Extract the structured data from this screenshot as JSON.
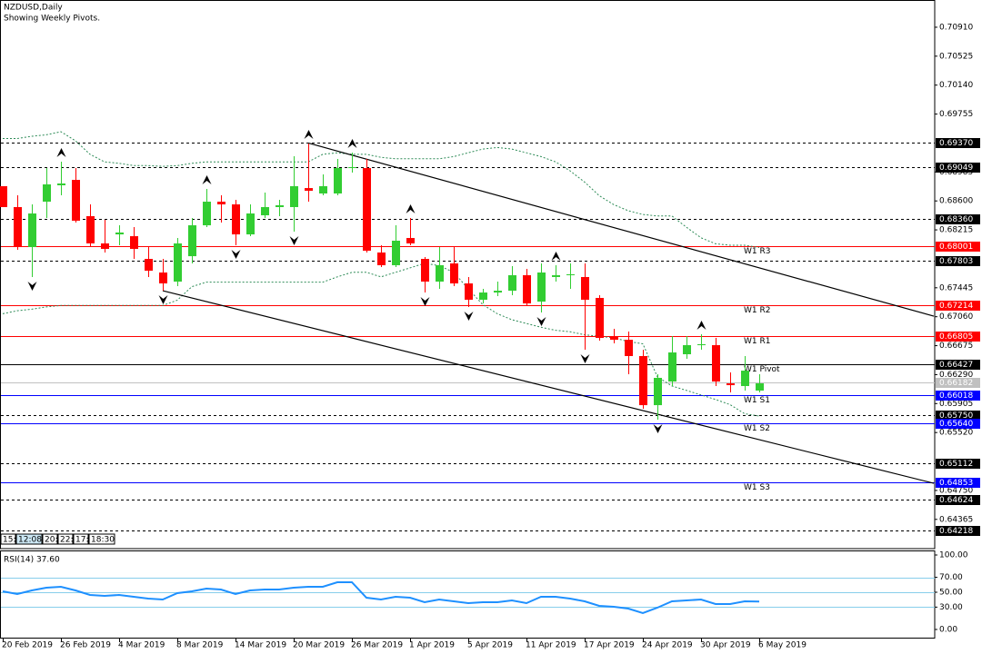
{
  "chart_data": [
    {
      "type": "candlestick",
      "title": "NZDUSD,Daily",
      "subtitle": "Showing Weekly Pivots.",
      "categories": [
        "20 Feb 2019",
        null,
        null,
        null,
        "26 Feb 2019",
        null,
        null,
        null,
        "4 Mar 2019",
        null,
        null,
        null,
        "8 Mar 2019",
        null,
        null,
        null,
        "14 Mar 2019",
        null,
        null,
        null,
        "20 Mar 2019",
        null,
        null,
        null,
        "26 Mar 2019",
        null,
        null,
        null,
        "1 Apr 2019",
        null,
        null,
        null,
        "5 Apr 2019",
        null,
        null,
        null,
        "11 Apr 2019",
        null,
        null,
        null,
        "17 Apr 2019",
        null,
        null,
        null,
        "24 Apr 2019",
        null,
        null,
        null,
        "30 Apr 2019",
        null,
        null,
        null,
        "6 May 2019"
      ],
      "open": [
        0.68796,
        0.68518,
        0.67986,
        0.6859,
        0.68808,
        0.6888,
        0.68397,
        0.68035,
        0.68155,
        0.68131,
        0.67829,
        0.67648,
        0.67527,
        0.67865,
        0.68276,
        0.6859,
        0.68554,
        0.68155,
        0.68409,
        0.68518,
        0.68518,
        0.68771,
        0.68699,
        0.68699,
        0.69037,
        0.69037,
        0.67914,
        0.67745,
        0.68107,
        0.67829,
        0.67527,
        0.67769,
        0.67503,
        0.67286,
        0.67382,
        0.67406,
        0.67612,
        0.67261,
        0.67588,
        0.67612,
        0.67588,
        0.6731,
        0.66802,
        0.66754,
        0.66537,
        0.65884,
        0.66198,
        0.66561,
        0.66682,
        0.66682,
        0.66174,
        0.66138,
        0.66078
      ],
      "high": [
        0.68796,
        0.68675,
        0.68554,
        0.69037,
        0.69122,
        0.69037,
        0.68554,
        0.68349,
        0.68276,
        0.68252,
        0.67986,
        0.67829,
        0.68107,
        0.68373,
        0.68759,
        0.68675,
        0.68614,
        0.68554,
        0.68711,
        0.68614,
        0.69194,
        0.69363,
        0.68953,
        0.69158,
        0.69243,
        0.69158,
        0.6801,
        0.68276,
        0.68373,
        0.67853,
        0.67986,
        0.67986,
        0.67588,
        0.67431,
        0.67527,
        0.67733,
        0.67696,
        0.67769,
        0.67745,
        0.67769,
        0.67769,
        0.67346,
        0.66899,
        0.66863,
        0.66621,
        0.66295,
        0.66802,
        0.66802,
        0.66827,
        0.66778,
        0.66319,
        0.66537,
        0.66295
      ],
      "low": [
        0.68518,
        0.6795,
        0.67588,
        0.68373,
        0.68675,
        0.68312,
        0.67986,
        0.67914,
        0.6801,
        0.67829,
        0.67588,
        0.67406,
        0.67467,
        0.67769,
        0.68252,
        0.68312,
        0.6801,
        0.68131,
        0.68373,
        0.68397,
        0.68192,
        0.6859,
        0.68675,
        0.68675,
        0.68977,
        0.67914,
        0.6772,
        0.6772,
        0.6801,
        0.67382,
        0.67431,
        0.67467,
        0.67189,
        0.67237,
        0.67334,
        0.67346,
        0.67213,
        0.67116,
        0.67527,
        0.67431,
        0.66621,
        0.66742,
        0.66706,
        0.66295,
        0.65836,
        0.65691,
        0.66138,
        0.665,
        0.66621,
        0.66138,
        0.66053,
        0.66078,
        0.66053
      ],
      "close": [
        0.68518,
        0.67986,
        0.68433,
        0.6882,
        0.68832,
        0.68337,
        0.68035,
        0.67962,
        0.6818,
        0.67962,
        0.67672,
        0.67503,
        0.68035,
        0.68276,
        0.6859,
        0.68554,
        0.68155,
        0.68433,
        0.68518,
        0.68542,
        0.68796,
        0.68735,
        0.68796,
        0.69037,
        0.69049,
        0.67938,
        0.67745,
        0.68071,
        0.68035,
        0.67527,
        0.67745,
        0.67503,
        0.67286,
        0.67382,
        0.67406,
        0.67612,
        0.67237,
        0.67648,
        0.67612,
        0.67624,
        0.67286,
        0.66778,
        0.66754,
        0.66537,
        0.65884,
        0.66247,
        0.66585,
        0.66682,
        0.66694,
        0.66198,
        0.6615,
        0.66343,
        0.66174
      ],
      "up_color": "#32cd32",
      "down_color": "#ff0000",
      "ylim": [
        0.63976,
        0.71272
      ],
      "yticks": [
        {
          "value": 0.7091,
          "label": "0.70910"
        },
        0.70525,
        {
          "value": 0.7014,
          "label": "0.70140"
        },
        0.69755,
        0.68985,
        {
          "value": 0.686,
          "label": "0.68600"
        },
        0.68215,
        0.67445,
        {
          "value": 0.6706,
          "label": "0.67060"
        },
        0.66675,
        {
          "value": 0.6629,
          "label": "0.66290"
        },
        0.65905,
        {
          "value": 0.6552,
          "label": "0.65520"
        },
        {
          "value": 0.6475,
          "label": "0.64750"
        },
        0.64365
      ],
      "levels": [
        {
          "value": 0.6937,
          "label": "0.69370"
        },
        0.69049,
        {
          "value": 0.6836,
          "label": "0.68360"
        },
        0.67803,
        {
          "value": 0.6575,
          "label": "0.65750"
        },
        0.65112,
        0.64624,
        0.64218
      ],
      "pivots": [
        {
          "name": "W1 R3",
          "value": 0.68001,
          "color": "#ff0000"
        },
        {
          "name": "W1 R2",
          "value": 0.67214,
          "color": "#ff0000"
        },
        {
          "name": "W1 R1",
          "value": 0.66805,
          "color": "#ff0000"
        },
        {
          "name": "W1 Pivot",
          "value": 0.66427,
          "color": "#000000"
        },
        {
          "name": "W1 S1",
          "value": 0.66018,
          "color": "#0000ff"
        },
        {
          "name": "W1 S2",
          "value": {
            "value": 0.6564,
            "label": "0.65640"
          },
          "color": "#0000ff"
        },
        {
          "name": "W1 S3",
          "value": 0.64853,
          "color": "#0000ff"
        }
      ],
      "price_line": 0.66182,
      "trendlines": [
        [
          [
            21,
            0.6937
          ],
          [
            64,
            0.67068
          ]
        ],
        [
          [
            11,
            0.67406
          ],
          [
            64,
            0.64845
          ]
        ]
      ],
      "band_color": "#2e8b57",
      "bands": {
        "upper": [
          0.6943,
          0.6943,
          0.6946,
          0.6948,
          0.6952,
          0.694,
          0.6922,
          0.6912,
          0.691,
          0.6907,
          0.6907,
          0.6906,
          0.6907,
          0.691,
          0.6912,
          0.6912,
          0.6912,
          0.6912,
          0.6912,
          0.6912,
          0.6912,
          0.6912,
          0.6922,
          0.6924,
          0.6922,
          0.6922,
          0.6918,
          0.6916,
          0.6916,
          0.6916,
          0.6916,
          0.6919,
          0.6924,
          0.6929,
          0.6931,
          0.6929,
          0.6924,
          0.6919,
          0.6912,
          0.69,
          0.6885,
          0.6867,
          0.6855,
          0.6847,
          0.6842,
          0.684,
          0.684,
          0.6825,
          0.6811,
          0.6803,
          0.6801,
          0.6801,
          0.6798
        ],
        "lower": [
          0.671,
          0.6714,
          0.6716,
          0.6719,
          0.6721,
          0.6721,
          0.6721,
          0.6721,
          0.6721,
          0.6721,
          0.6721,
          0.6721,
          0.6728,
          0.6746,
          0.6752,
          0.6752,
          0.6752,
          0.6752,
          0.6752,
          0.6752,
          0.6752,
          0.6752,
          0.6752,
          0.6759,
          0.6765,
          0.6765,
          0.6759,
          0.6765,
          0.6771,
          0.6777,
          0.6774,
          0.6765,
          0.6743,
          0.6722,
          0.671,
          0.6702,
          0.6697,
          0.6692,
          0.6688,
          0.6686,
          0.6682,
          0.668,
          0.6678,
          0.6673,
          0.667,
          0.6626,
          0.6614,
          0.6608,
          0.6602,
          0.6596,
          0.6589,
          0.6577,
          0.6574
        ]
      },
      "fractals": {
        "up": [
          4,
          14,
          21,
          24,
          28,
          38,
          48
        ],
        "down": [
          2,
          11,
          16,
          20,
          29,
          32,
          37,
          40,
          45
        ]
      }
    },
    {
      "type": "line",
      "title": "RSI(14) 37.60",
      "color": "#1e90ff",
      "values": [
        51.2,
        47.6,
        52.4,
        56.1,
        57.3,
        52.4,
        46.3,
        45.1,
        46.3,
        43.9,
        41.5,
        40.2,
        48.8,
        51.2,
        54.9,
        53.7,
        47.6,
        52.4,
        53.7,
        53.7,
        56.1,
        57.3,
        57.3,
        63.4,
        63.4,
        42.7,
        40.2,
        43.9,
        42.7,
        36.6,
        40.2,
        37.8,
        35.4,
        36.6,
        36.6,
        39.0,
        35.4,
        43.9,
        43.9,
        41.5,
        37.8,
        31.7,
        30.5,
        28.0,
        22.0,
        29.3,
        37.8,
        39.0,
        40.2,
        34.1,
        34.1,
        37.8,
        37.6
      ],
      "ylim": [
        -11,
        106.1
      ],
      "yticks": [
        {
          "value": 100,
          "label": "100.00"
        },
        {
          "value": 70,
          "label": "70.00"
        },
        {
          "value": 50,
          "label": "50.00"
        },
        {
          "value": 30,
          "label": "30.00"
        },
        {
          "value": 0,
          "label": "0.00"
        }
      ],
      "levels": [
        70,
        50,
        30
      ],
      "level_color": "#87ceeb"
    }
  ],
  "clocks": [
    "15:",
    "12:08",
    "20:",
    "22:",
    "17:",
    "18:30"
  ]
}
